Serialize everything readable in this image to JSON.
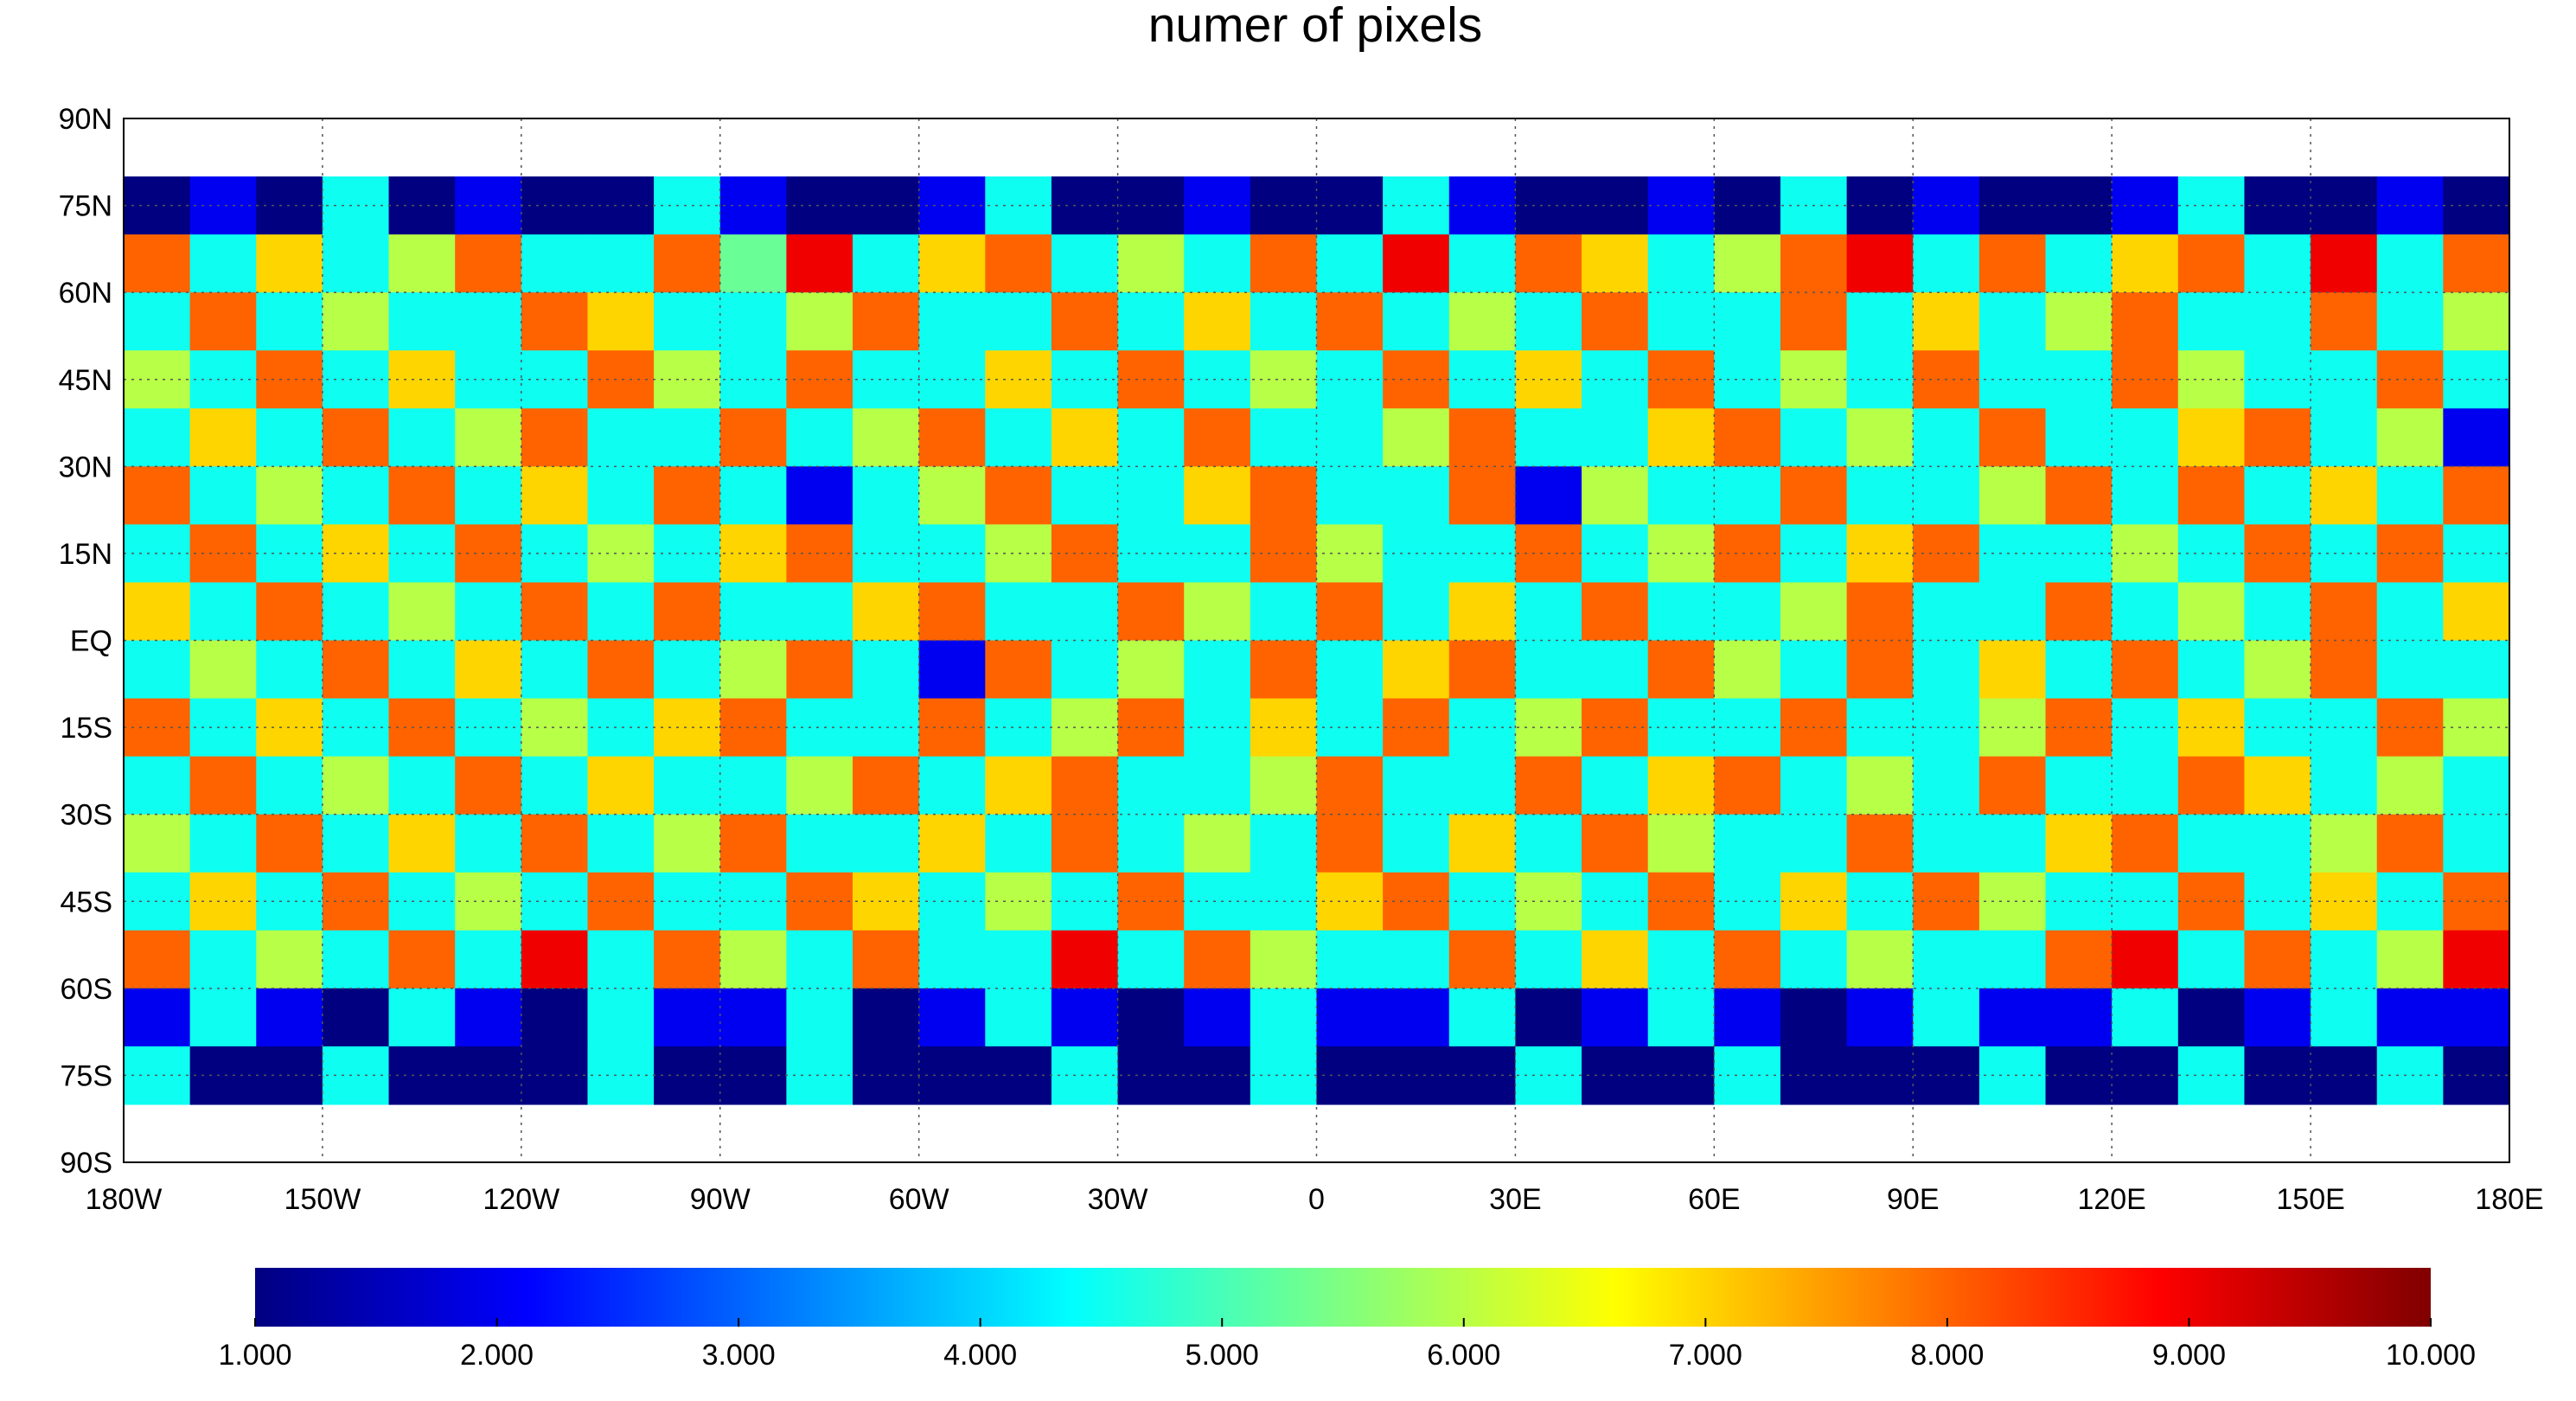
{
  "chart_data": {
    "type": "heatmap",
    "title": "numer of pixels",
    "colormap": "jet",
    "clim": [
      1,
      10
    ],
    "grid": true,
    "xlim": [
      -180,
      180
    ],
    "ylim": [
      -90,
      90
    ],
    "xbins": [
      -180,
      -170,
      -160,
      -150,
      -140,
      -130,
      -120,
      -110,
      -100,
      -90,
      -80,
      -70,
      -60,
      -50,
      -40,
      -30,
      -20,
      -10,
      0,
      10,
      20,
      30,
      40,
      50,
      60,
      70,
      80,
      90,
      100,
      110,
      120,
      130,
      140,
      150,
      160,
      170,
      180
    ],
    "ybins": [
      80,
      70,
      60,
      50,
      40,
      30,
      20,
      10,
      0,
      -10,
      -20,
      -30,
      -40,
      -50,
      -60,
      -70,
      -80
    ],
    "xticks": [
      {
        "value": -180,
        "label": "180W"
      },
      {
        "value": -150,
        "label": "150W"
      },
      {
        "value": -120,
        "label": "120W"
      },
      {
        "value": -90,
        "label": "90W"
      },
      {
        "value": -60,
        "label": "60W"
      },
      {
        "value": -30,
        "label": "30W"
      },
      0,
      {
        "value": 30,
        "label": "30E"
      },
      {
        "value": 60,
        "label": "60E"
      },
      {
        "value": 90,
        "label": "90E"
      },
      {
        "value": 120,
        "label": "120E"
      },
      {
        "value": 150,
        "label": "150E"
      },
      {
        "value": 180,
        "label": "180E"
      }
    ],
    "yticks": [
      {
        "value": 90,
        "label": "90N"
      },
      {
        "value": 75,
        "label": "75N"
      },
      {
        "value": 60,
        "label": "60N"
      },
      {
        "value": 45,
        "label": "45N"
      },
      {
        "value": 30,
        "label": "30N"
      },
      {
        "value": 15,
        "label": "15N"
      },
      {
        "value": 0,
        "label": "EQ"
      },
      {
        "value": -15,
        "label": "15S"
      },
      {
        "value": -30,
        "label": "30S"
      },
      {
        "value": -45,
        "label": "45S"
      },
      {
        "value": -60,
        "label": "60S"
      },
      {
        "value": -75,
        "label": "75S"
      },
      {
        "value": -90,
        "label": "90S"
      }
    ],
    "colorbar_ticks": [
      {
        "value": 1,
        "label": "1.000"
      },
      {
        "value": 2,
        "label": "2.000"
      },
      {
        "value": 3,
        "label": "3.000"
      },
      {
        "value": 4,
        "label": "4.000"
      },
      {
        "value": 5,
        "label": "5.000"
      },
      {
        "value": 6,
        "label": "6.000"
      },
      {
        "value": 7,
        "label": "7.000"
      },
      {
        "value": 8,
        "label": "8.000"
      },
      {
        "value": 9,
        "label": "9.000"
      },
      {
        "value": 10,
        "label": "10.000"
      }
    ],
    "z": [
      [
        1,
        2,
        1,
        4.5,
        1,
        2,
        1,
        1,
        4.5,
        2,
        1,
        1,
        2,
        4.5,
        1,
        1,
        2,
        1,
        1,
        4.5,
        2,
        1,
        1,
        2,
        1,
        4.5,
        1,
        2,
        1,
        1,
        2,
        4.5,
        1,
        1,
        2,
        1
      ],
      [
        8,
        4.5,
        7,
        4.5,
        6,
        8,
        4.5,
        4.5,
        8,
        5.3,
        9,
        4.5,
        7,
        8,
        4.5,
        6,
        4.5,
        8,
        4.5,
        9,
        4.5,
        8,
        7,
        4.5,
        6,
        8,
        9,
        4.5,
        8,
        4.5,
        7,
        8,
        4.5,
        9,
        4.5,
        8
      ],
      [
        4.5,
        8,
        4.5,
        6,
        4.5,
        4.5,
        8,
        7,
        4.5,
        4.5,
        6,
        8,
        4.5,
        4.5,
        8,
        4.5,
        7,
        4.5,
        8,
        4.5,
        6,
        4.5,
        8,
        4.5,
        4.5,
        8,
        4.5,
        7,
        4.5,
        6,
        8,
        4.5,
        4.5,
        8,
        4.5,
        6
      ],
      [
        6,
        4.5,
        8,
        4.5,
        7,
        4.5,
        4.5,
        8,
        6,
        4.5,
        8,
        4.5,
        4.5,
        7,
        4.5,
        8,
        4.5,
        6,
        4.5,
        8,
        4.5,
        7,
        4.5,
        8,
        4.5,
        6,
        4.5,
        8,
        4.5,
        4.5,
        8,
        6,
        4.5,
        4.5,
        8,
        4.5
      ],
      [
        4.5,
        7,
        4.5,
        8,
        4.5,
        6,
        8,
        4.5,
        4.5,
        8,
        4.5,
        6,
        8,
        4.5,
        7,
        4.5,
        8,
        4.5,
        4.5,
        6,
        8,
        4.5,
        4.5,
        7,
        8,
        4.5,
        6,
        4.5,
        8,
        4.5,
        4.5,
        7,
        8,
        4.5,
        6,
        2
      ],
      [
        8,
        4.5,
        6,
        4.5,
        8,
        4.5,
        7,
        4.5,
        8,
        4.5,
        2,
        4.5,
        6,
        8,
        4.5,
        4.5,
        7,
        8,
        4.5,
        4.5,
        8,
        2,
        6,
        4.5,
        4.5,
        8,
        4.5,
        4.5,
        6,
        8,
        4.5,
        8,
        4.5,
        7,
        4.5,
        8
      ],
      [
        4.5,
        8,
        4.5,
        7,
        4.5,
        8,
        4.5,
        6,
        4.5,
        7,
        8,
        4.5,
        4.5,
        6,
        8,
        4.5,
        4.5,
        8,
        6,
        4.5,
        4.5,
        8,
        4.5,
        6,
        8,
        4.5,
        7,
        8,
        4.5,
        4.5,
        6,
        4.5,
        8,
        4.5,
        8,
        4.5
      ],
      [
        7,
        4.5,
        8,
        4.5,
        6,
        4.5,
        8,
        4.5,
        8,
        4.5,
        4.5,
        7,
        8,
        4.5,
        4.5,
        8,
        6,
        4.5,
        8,
        4.5,
        7,
        4.5,
        8,
        4.5,
        4.5,
        6,
        8,
        4.5,
        4.5,
        8,
        4.5,
        6,
        4.5,
        8,
        4.5,
        7
      ],
      [
        4.5,
        6,
        4.5,
        8,
        4.5,
        7,
        4.5,
        8,
        4.5,
        6,
        8,
        4.5,
        2,
        8,
        4.5,
        6,
        4.5,
        8,
        4.5,
        7,
        8,
        4.5,
        4.5,
        8,
        6,
        4.5,
        8,
        4.5,
        7,
        4.5,
        8,
        4.5,
        6,
        8,
        4.5,
        4.5
      ],
      [
        8,
        4.5,
        7,
        4.5,
        8,
        4.5,
        6,
        4.5,
        7,
        8,
        4.5,
        4.5,
        8,
        4.5,
        6,
        8,
        4.5,
        7,
        4.5,
        8,
        4.5,
        6,
        8,
        4.5,
        4.5,
        8,
        4.5,
        4.5,
        6,
        8,
        4.5,
        7,
        4.5,
        4.5,
        8,
        6
      ],
      [
        4.5,
        8,
        4.5,
        6,
        4.5,
        8,
        4.5,
        7,
        4.5,
        4.5,
        6,
        8,
        4.5,
        7,
        8,
        4.5,
        4.5,
        6,
        8,
        4.5,
        4.5,
        8,
        4.5,
        7,
        8,
        4.5,
        6,
        4.5,
        8,
        4.5,
        4.5,
        8,
        7,
        4.5,
        6,
        4.5
      ],
      [
        6,
        4.5,
        8,
        4.5,
        7,
        4.5,
        8,
        4.5,
        6,
        8,
        4.5,
        4.5,
        7,
        4.5,
        8,
        4.5,
        6,
        4.5,
        8,
        4.5,
        7,
        4.5,
        8,
        6,
        4.5,
        4.5,
        8,
        4.5,
        4.5,
        7,
        8,
        4.5,
        4.5,
        6,
        8,
        4.5
      ],
      [
        4.5,
        7,
        4.5,
        8,
        4.5,
        6,
        4.5,
        8,
        4.5,
        4.5,
        8,
        7,
        4.5,
        6,
        4.5,
        8,
        4.5,
        4.5,
        7,
        8,
        4.5,
        6,
        4.5,
        8,
        4.5,
        7,
        4.5,
        8,
        6,
        4.5,
        4.5,
        8,
        4.5,
        7,
        4.5,
        8
      ],
      [
        8,
        4.5,
        6,
        4.5,
        8,
        4.5,
        9,
        4.5,
        8,
        6,
        4.5,
        8,
        4.5,
        4.5,
        9,
        4.5,
        8,
        6,
        4.5,
        4.5,
        8,
        4.5,
        7,
        4.5,
        8,
        4.5,
        6,
        4.5,
        4.5,
        8,
        9,
        4.5,
        8,
        4.5,
        6,
        9
      ],
      [
        2,
        4.5,
        2,
        1,
        4.5,
        2,
        1,
        4.5,
        2,
        2,
        4.5,
        1,
        2,
        4.5,
        2,
        1,
        2,
        4.5,
        2,
        2,
        4.5,
        1,
        2,
        4.5,
        2,
        1,
        2,
        4.5,
        2,
        2,
        4.5,
        1,
        2,
        4.5,
        2,
        2
      ],
      [
        4.5,
        1,
        1,
        4.5,
        1,
        1,
        1,
        4.5,
        1,
        1,
        4.5,
        1,
        1,
        1,
        4.5,
        1,
        1,
        4.5,
        1,
        1,
        1,
        4.5,
        1,
        1,
        4.5,
        1,
        1,
        1,
        4.5,
        1,
        1,
        4.5,
        1,
        1,
        4.5,
        1
      ]
    ]
  }
}
